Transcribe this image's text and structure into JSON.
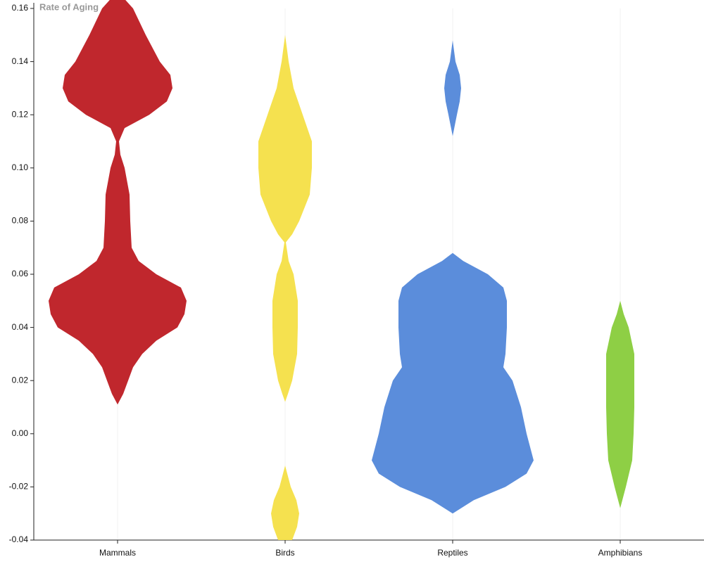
{
  "chart_data": {
    "type": "violin",
    "title": "Rate of Aging",
    "categories": [
      "Mammals",
      "Birds",
      "Reptiles",
      "Amphibians"
    ],
    "ylim": [
      -0.04,
      0.16
    ],
    "yticks": [
      -0.04,
      -0.02,
      {
        "value": 0,
        "label": "0.00"
      },
      0.02,
      0.04,
      0.06,
      0.08,
      {
        "value": 0.1,
        "label": "0.10"
      },
      0.12,
      0.14,
      0.16
    ],
    "series": [
      {
        "color": "#c0272d",
        "y": [
          0.011,
          0.015,
          0.02,
          0.025,
          0.03,
          0.035,
          0.04,
          0.045,
          0.05,
          0.055,
          0.06,
          0.065,
          0.07,
          0.08,
          0.09,
          0.1,
          0.105,
          0.11,
          0.115,
          0.12,
          0.125,
          0.13,
          0.135,
          0.14,
          0.15,
          0.16,
          0.165
        ],
        "density": [
          0,
          0.08,
          0.15,
          0.22,
          0.35,
          0.55,
          0.85,
          0.95,
          0.98,
          0.9,
          0.55,
          0.3,
          0.2,
          0.18,
          0.17,
          0.1,
          0.04,
          0.02,
          0.1,
          0.45,
          0.7,
          0.78,
          0.75,
          0.6,
          0.4,
          0.22,
          0.05
        ]
      },
      {
        "color": "#f5e14f",
        "y": [
          -0.04,
          -0.035,
          -0.03,
          -0.025,
          -0.02,
          -0.012,
          0.012,
          0.015,
          0.02,
          0.03,
          0.04,
          0.05,
          0.06,
          0.065,
          0.072,
          0.075,
          0.08,
          0.09,
          0.1,
          0.11,
          0.12,
          0.13,
          0.14,
          0.15
        ],
        "density": [
          0.1,
          0.17,
          0.2,
          0.16,
          0.08,
          0,
          0,
          0.04,
          0.1,
          0.17,
          0.18,
          0.18,
          0.12,
          0.05,
          0.01,
          0.1,
          0.2,
          0.35,
          0.38,
          0.38,
          0.25,
          0.12,
          0.05,
          0
        ]
      },
      {
        "color": "#5b8ddb",
        "y": [
          -0.03,
          -0.025,
          -0.02,
          -0.015,
          -0.01,
          0,
          0.01,
          0.02,
          0.025,
          0.03,
          0.04,
          0.05,
          0.055,
          0.06,
          0.065,
          0.068,
          0.112,
          0.12,
          0.125,
          0.13,
          0.135,
          0.14,
          0.148
        ],
        "density": [
          0,
          0.3,
          0.75,
          1.05,
          1.15,
          1.05,
          0.97,
          0.85,
          0.72,
          0.75,
          0.77,
          0.77,
          0.72,
          0.5,
          0.15,
          0,
          0,
          0.06,
          0.1,
          0.12,
          0.1,
          0.04,
          0
        ]
      },
      {
        "color": "#8ecf45",
        "y": [
          -0.028,
          -0.02,
          -0.01,
          0,
          0.01,
          0.02,
          0.03,
          0.04,
          0.045,
          0.05
        ],
        "density": [
          0,
          0.08,
          0.17,
          0.19,
          0.2,
          0.2,
          0.2,
          0.12,
          0.05,
          0
        ]
      }
    ]
  }
}
